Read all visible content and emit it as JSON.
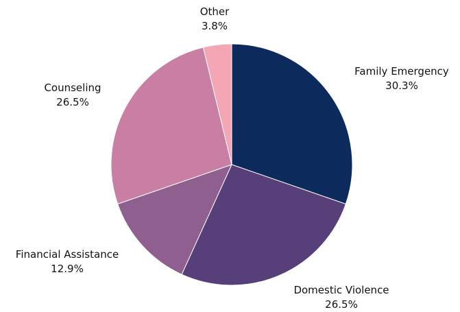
{
  "chart_data": {
    "type": "pie",
    "slices": [
      {
        "label": "Family Emergency",
        "value": 30.3,
        "display": "30.3%",
        "color": "#0d2a5c"
      },
      {
        "label": "Domestic Violence",
        "value": 26.5,
        "display": "26.5%",
        "color": "#574079"
      },
      {
        "label": "Financial Assistance",
        "value": 12.9,
        "display": "12.9%",
        "color": "#8f5f8f"
      },
      {
        "label": "Counseling",
        "value": 26.5,
        "display": "26.5%",
        "color": "#c87fa3"
      },
      {
        "label": "Other",
        "value": 3.8,
        "display": "3.8%",
        "color": "#f5a6b4"
      }
    ],
    "start_angle": "12 o'clock",
    "direction": "clockwise",
    "slice_border_color": "#ffffff"
  }
}
